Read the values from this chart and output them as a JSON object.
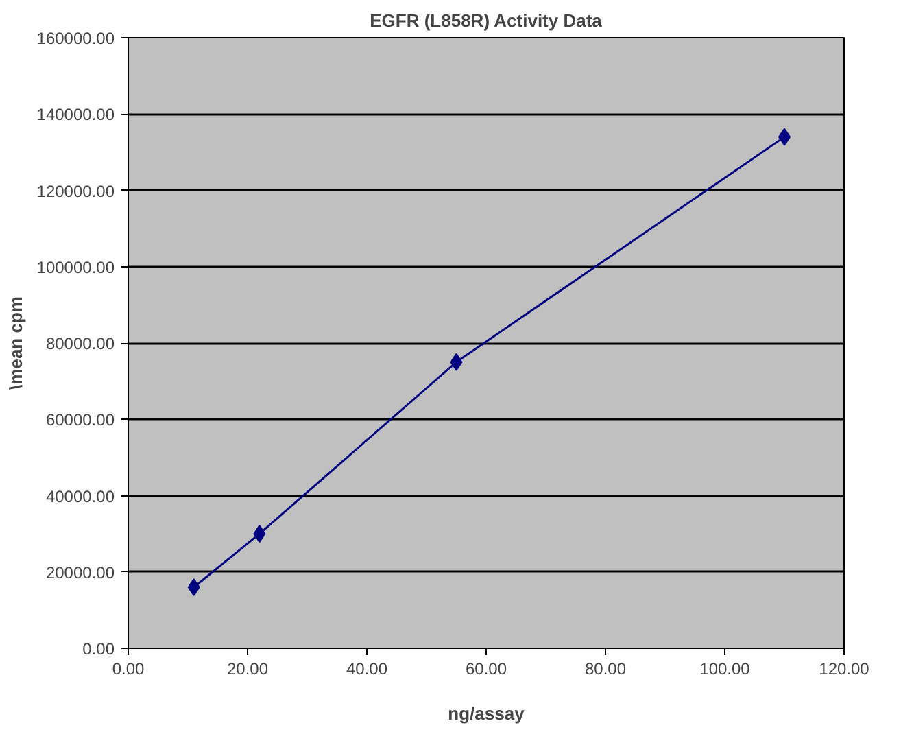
{
  "chart_data": {
    "type": "line",
    "title": "EGFR (L858R) Activity Data",
    "xlabel": "ng/assay",
    "ylabel": "\\mean cpm",
    "x": [
      11,
      22,
      55,
      110
    ],
    "series": [
      {
        "color": "#000080",
        "values": [
          16000,
          30000,
          75000,
          134000
        ]
      }
    ],
    "xlim": [
      0,
      120
    ],
    "xticks": [
      {
        "value": 0,
        "label": "0.00"
      },
      {
        "value": 20,
        "label": "20.00"
      },
      {
        "value": 40,
        "label": "40.00"
      },
      {
        "value": 60,
        "label": "60.00"
      },
      {
        "value": 80,
        "label": "80.00"
      },
      {
        "value": 100,
        "label": "100.00"
      },
      {
        "value": 120,
        "label": "120.00"
      }
    ],
    "ylim": [
      0,
      160000
    ],
    "yticks": [
      {
        "value": 0,
        "label": "0.00"
      },
      {
        "value": 20000,
        "label": "20000.00"
      },
      {
        "value": 40000,
        "label": "40000.00"
      },
      {
        "value": 60000,
        "label": "60000.00"
      },
      {
        "value": 80000,
        "label": "80000.00"
      },
      {
        "value": 100000,
        "label": "100000.00"
      },
      {
        "value": 120000,
        "label": "120000.00"
      },
      {
        "value": 140000,
        "label": "140000.00"
      },
      {
        "value": 160000,
        "label": "160000.00"
      }
    ],
    "grid": "y",
    "marker": "diamond"
  }
}
